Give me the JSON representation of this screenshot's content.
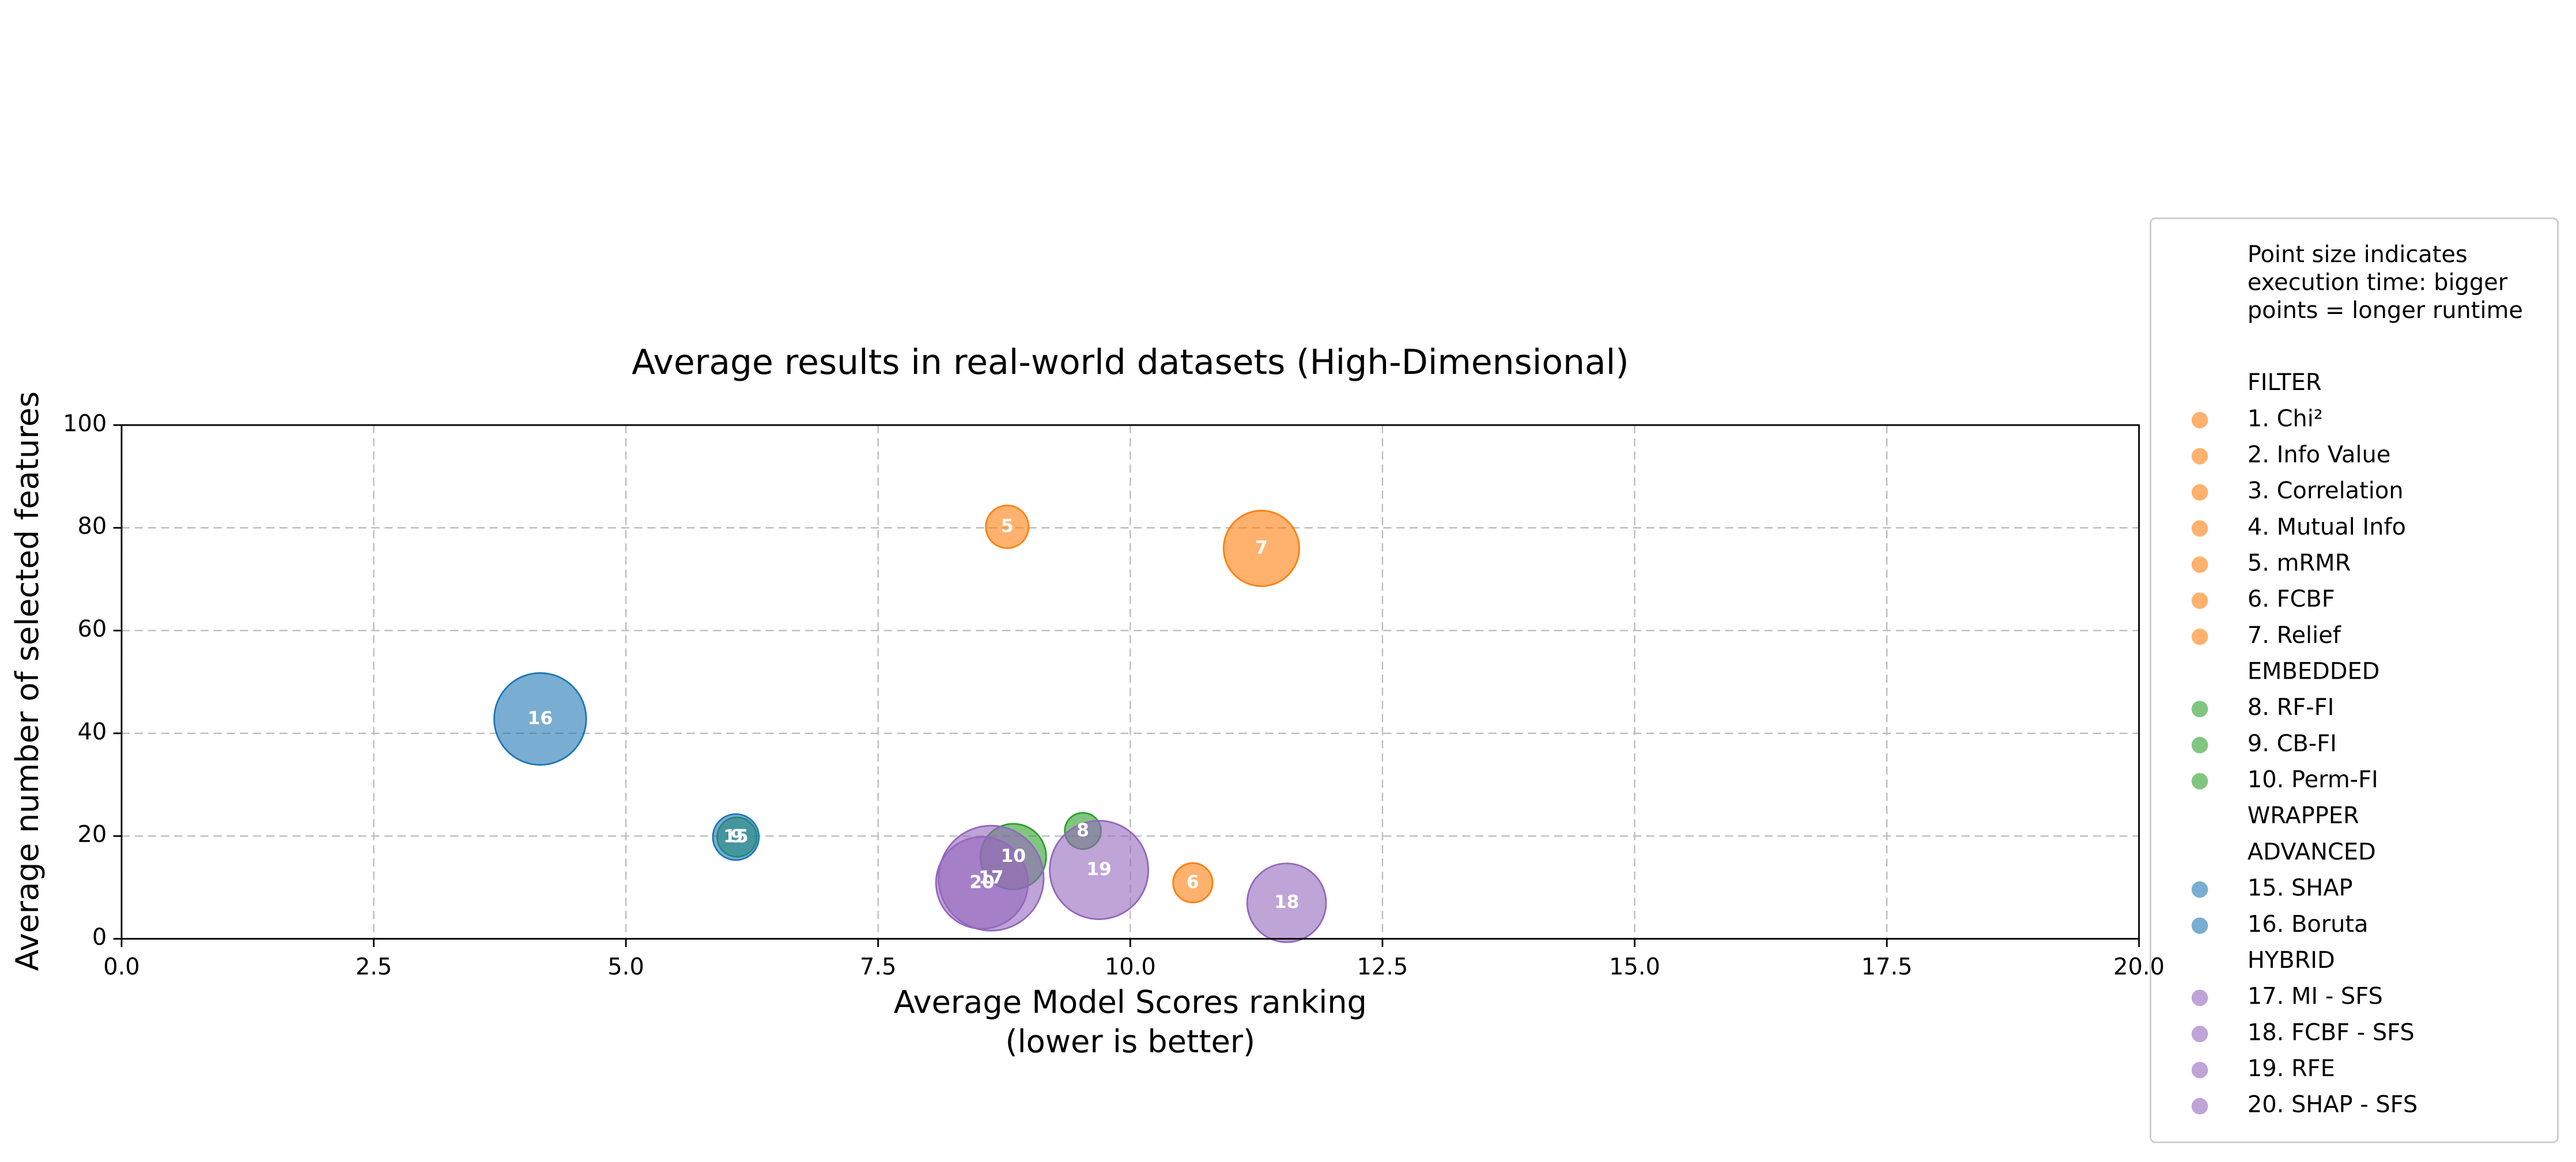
{
  "chart_data": {
    "type": "bubble",
    "title": "Average results in real-world datasets (High-Dimensional)",
    "xlabel": [
      "Average Model Scores ranking",
      "(lower is better)"
    ],
    "ylabel": "Average number of selected features",
    "xlim": [
      0,
      20
    ],
    "xticks": [
      {
        "value": 0,
        "label": "0.0"
      },
      {
        "value": 2.5,
        "label": "2.5"
      },
      {
        "value": 5,
        "label": "5.0"
      },
      {
        "value": 7.5,
        "label": "7.5"
      },
      {
        "value": 10,
        "label": "10.0"
      },
      {
        "value": 12.5,
        "label": "12.5"
      },
      {
        "value": 15,
        "label": "15.0"
      },
      {
        "value": 17.5,
        "label": "17.5"
      },
      {
        "value": 20,
        "label": "20.0"
      }
    ],
    "ylim": [
      0,
      100
    ],
    "yticks": [
      0,
      20,
      40,
      60,
      80,
      100
    ],
    "grid": true,
    "points": [
      {
        "label": "5",
        "x": 8.78,
        "y": 80.2,
        "size": 676,
        "color": "#ff7f0e"
      },
      {
        "label": "6",
        "x": 10.62,
        "y": 10.9,
        "size": 576,
        "color": "#ff7f0e"
      },
      {
        "label": "7",
        "x": 11.3,
        "y": 76,
        "size": 2116,
        "color": "#ff7f0e"
      },
      {
        "label": "8",
        "x": 9.53,
        "y": 21,
        "size": 484,
        "color": "#2ca02c"
      },
      {
        "label": "9",
        "x": 6.1,
        "y": 19.8,
        "size": 576,
        "color": "#2ca02c"
      },
      {
        "label": "10",
        "x": 8.84,
        "y": 16,
        "size": 1600,
        "color": "#2ca02c"
      },
      {
        "label": "15",
        "x": 6.09,
        "y": 19.8,
        "size": 784,
        "color": "#1f77b4"
      },
      {
        "label": "16",
        "x": 4.15,
        "y": 42.8,
        "size": 3136,
        "color": "#1f77b4"
      },
      {
        "label": "17",
        "x": 8.62,
        "y": 11.8,
        "size": 4096,
        "color": "#9467bd"
      },
      {
        "label": "18",
        "x": 11.55,
        "y": 7,
        "size": 2304,
        "color": "#9467bd"
      },
      {
        "label": "19",
        "x": 9.69,
        "y": 13.4,
        "size": 3600,
        "color": "#9467bd"
      },
      {
        "label": "20",
        "x": 8.53,
        "y": 10.9,
        "size": 3136,
        "color": "#9467bd"
      }
    ],
    "legend": {
      "note": [
        "Point size indicates",
        "execution time: bigger",
        "points = longer runtime"
      ],
      "entries": [
        {
          "label": "FILTER"
        },
        {
          "label": "1. Chi²",
          "color": "#ff7f0e"
        },
        {
          "label": "2. Info Value",
          "color": "#ff7f0e"
        },
        {
          "label": "3. Correlation",
          "color": "#ff7f0e"
        },
        {
          "label": "4. Mutual Info",
          "color": "#ff7f0e"
        },
        {
          "label": "5. mRMR",
          "color": "#ff7f0e"
        },
        {
          "label": "6. FCBF",
          "color": "#ff7f0e"
        },
        {
          "label": "7. Relief",
          "color": "#ff7f0e"
        },
        {
          "label": "EMBEDDED"
        },
        {
          "label": "8. RF-FI",
          "color": "#2ca02c"
        },
        {
          "label": "9. CB-FI",
          "color": "#2ca02c"
        },
        {
          "label": "10. Perm-FI",
          "color": "#2ca02c"
        },
        {
          "label": "WRAPPER"
        },
        {
          "label": "ADVANCED"
        },
        {
          "label": "15. SHAP",
          "color": "#1f77b4"
        },
        {
          "label": "16. Boruta",
          "color": "#1f77b4"
        },
        {
          "label": "HYBRID"
        },
        {
          "label": "17. MI - SFS",
          "color": "#9467bd"
        },
        {
          "label": "18. FCBF - SFS",
          "color": "#9467bd"
        },
        {
          "label": "19. RFE",
          "color": "#9467bd"
        },
        {
          "label": "20. SHAP - SFS",
          "color": "#9467bd"
        }
      ]
    }
  }
}
